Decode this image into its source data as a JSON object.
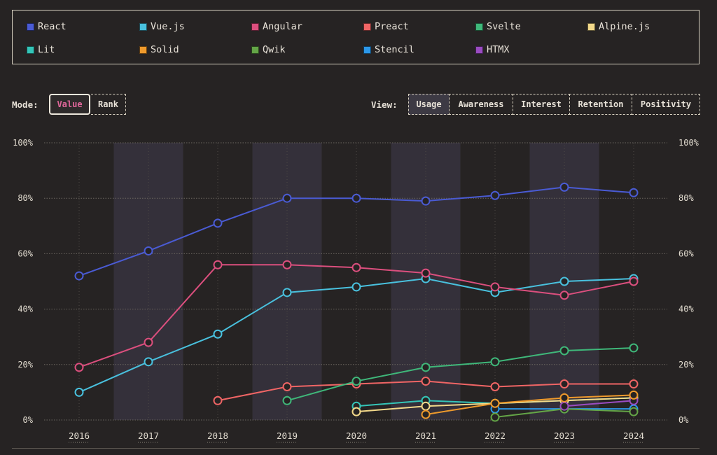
{
  "legend": [
    {
      "name": "React",
      "color": "#4a5bd4"
    },
    {
      "name": "Vue.js",
      "color": "#49c1de"
    },
    {
      "name": "Angular",
      "color": "#dc4f7e"
    },
    {
      "name": "Preact",
      "color": "#f06565"
    },
    {
      "name": "Svelte",
      "color": "#3fb87a"
    },
    {
      "name": "Alpine.js",
      "color": "#f3d98a"
    },
    {
      "name": "Lit",
      "color": "#34c5b8"
    },
    {
      "name": "Solid",
      "color": "#ef9a2c"
    },
    {
      "name": "Qwik",
      "color": "#64a547"
    },
    {
      "name": "Stencil",
      "color": "#2c98ea"
    },
    {
      "name": "HTMX",
      "color": "#9a4cc1"
    }
  ],
  "controls": {
    "mode_label": "Mode:",
    "mode_options": [
      "Value",
      "Rank"
    ],
    "mode_active": "Value",
    "view_label": "View:",
    "view_options": [
      "Usage",
      "Awareness",
      "Interest",
      "Retention",
      "Positivity"
    ],
    "view_active": "Usage"
  },
  "chart_data": {
    "type": "line",
    "x": [
      "2016",
      "2017",
      "2018",
      "2019",
      "2020",
      "2021",
      "2022",
      "2023",
      "2024"
    ],
    "ylim": [
      0,
      100
    ],
    "yticks": [
      "0%",
      "20%",
      "40%",
      "60%",
      "80%",
      "100%"
    ],
    "shaded_years": [
      "2017",
      "2019",
      "2021",
      "2023"
    ],
    "series": [
      {
        "name": "React",
        "color": "#4a5bd4",
        "values": [
          52,
          61,
          71,
          80,
          80,
          79,
          81,
          84,
          82
        ]
      },
      {
        "name": "Vue.js",
        "color": "#49c1de",
        "values": [
          10,
          21,
          31,
          46,
          48,
          51,
          46,
          50,
          51
        ]
      },
      {
        "name": "Angular",
        "color": "#dc4f7e",
        "values": [
          19,
          28,
          56,
          56,
          55,
          53,
          48,
          45,
          50
        ]
      },
      {
        "name": "Preact",
        "color": "#f06565",
        "values": [
          null,
          null,
          7,
          12,
          13,
          14,
          12,
          13,
          13
        ]
      },
      {
        "name": "Svelte",
        "color": "#3fb87a",
        "values": [
          null,
          null,
          null,
          7,
          14,
          19,
          21,
          25,
          26
        ]
      },
      {
        "name": "Lit",
        "color": "#34c5b8",
        "values": [
          null,
          null,
          null,
          null,
          5,
          7,
          6,
          7,
          8
        ]
      },
      {
        "name": "Alpine.js",
        "color": "#f3d98a",
        "values": [
          null,
          null,
          null,
          null,
          3,
          5,
          6,
          7,
          8
        ]
      },
      {
        "name": "Stencil",
        "color": "#2c98ea",
        "values": [
          null,
          null,
          null,
          null,
          null,
          null,
          4,
          4,
          4
        ]
      },
      {
        "name": "Qwik",
        "color": "#64a547",
        "values": [
          null,
          null,
          null,
          null,
          null,
          null,
          1,
          4,
          3
        ]
      },
      {
        "name": "HTMX",
        "color": "#9a4cc1",
        "values": [
          null,
          null,
          null,
          null,
          null,
          null,
          null,
          5,
          7
        ]
      },
      {
        "name": "Solid",
        "color": "#ef9a2c",
        "values": [
          null,
          null,
          null,
          null,
          null,
          2,
          6,
          8,
          9
        ]
      }
    ]
  }
}
